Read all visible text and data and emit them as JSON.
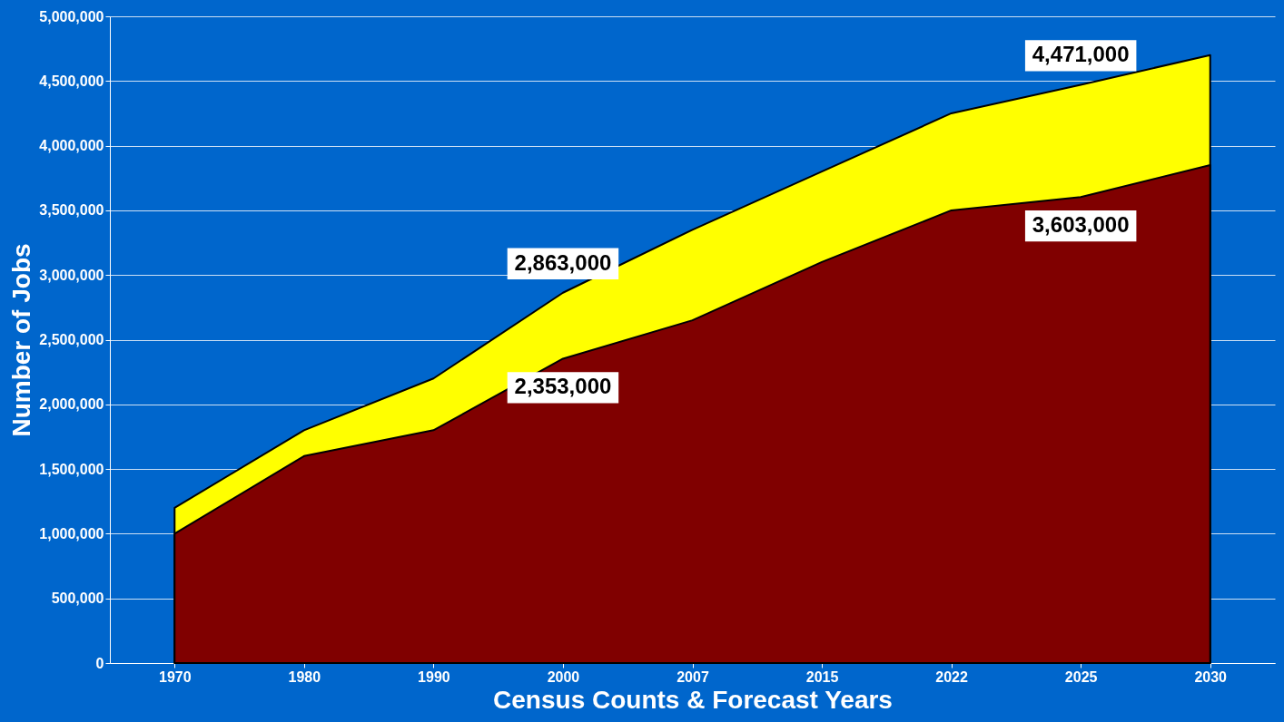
{
  "chart_data": {
    "type": "area",
    "xlabel": "Census Counts & Forecast Years",
    "ylabel": "Number of Jobs",
    "categories": [
      "1970",
      "1980",
      "1990",
      "2000",
      "2007",
      "2015",
      "2022",
      "2025",
      "2030"
    ],
    "series": [
      {
        "color": "#ffff00",
        "values": [
          1200000,
          1800000,
          2200000,
          2863000,
          3350000,
          3800000,
          4250000,
          4471000,
          4700000
        ],
        "value_labels": [
          null,
          null,
          null,
          "2,863,000",
          null,
          null,
          null,
          "4,471,000",
          null
        ]
      },
      {
        "color": "#800000",
        "values": [
          1000000,
          1600000,
          1800000,
          2353000,
          2650000,
          3100000,
          3500000,
          3603000,
          3850000
        ],
        "value_labels": [
          null,
          null,
          null,
          "2,353,000",
          null,
          null,
          null,
          "3,603,000",
          null
        ]
      }
    ],
    "ylim": [
      0,
      5000000
    ],
    "yticks": [
      0,
      {
        "value": 500000,
        "label": "500,000"
      },
      {
        "value": 1000000,
        "label": "1,000,000"
      },
      {
        "value": 1500000,
        "label": "1,500,000"
      },
      {
        "value": 2000000,
        "label": "2,000,000"
      },
      {
        "value": 2500000,
        "label": "2,500,000"
      },
      {
        "value": 3000000,
        "label": "3,000,000"
      },
      {
        "value": 3500000,
        "label": "3,500,000"
      },
      {
        "value": 4000000,
        "label": "4,000,000"
      },
      {
        "value": 4500000,
        "label": "4,500,000"
      },
      {
        "value": 5000000,
        "label": "5,000,000"
      }
    ],
    "grid": "y"
  }
}
